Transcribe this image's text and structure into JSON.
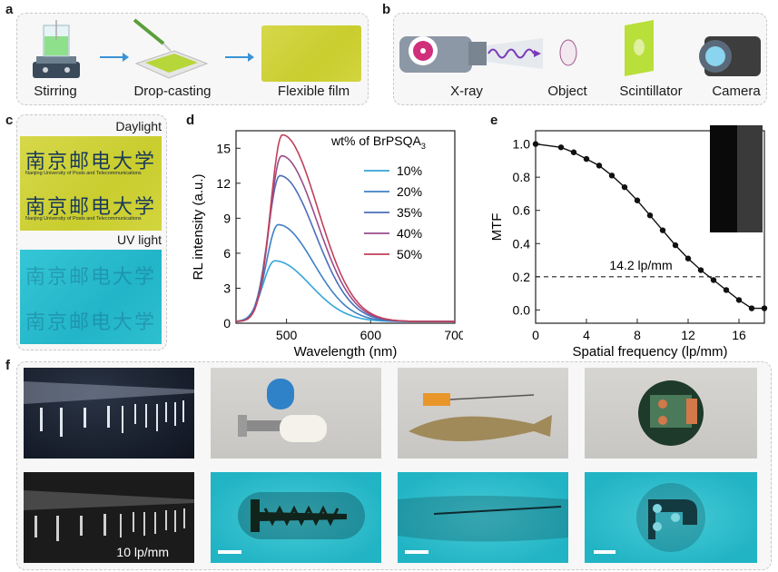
{
  "panels": {
    "a": "a",
    "b": "b",
    "c": "c",
    "d": "d",
    "e": "e",
    "f": "f"
  },
  "panel_a": {
    "steps": [
      "Stirring",
      "Drop-casting",
      "Flexible film"
    ]
  },
  "panel_b": {
    "steps": [
      "X-ray",
      "Object",
      "Scintillator",
      "Camera"
    ]
  },
  "panel_c": {
    "top_label": "Daylight",
    "bottom_label": "UV light",
    "film_chars": "南京邮电大学",
    "film_text": "Nanjing University of Posts and Telecommunications"
  },
  "panel_f": {
    "resolution_label": "10 lp/mm"
  },
  "chart_data": [
    {
      "type": "line",
      "panel": "d",
      "xlabel": "Wavelength (nm)",
      "ylabel": "RL intensity (a.u.)",
      "xlim": [
        440,
        700
      ],
      "ylim": [
        0,
        16.5
      ],
      "xticks": [
        500,
        600,
        700
      ],
      "yticks": [
        0,
        3,
        6,
        9,
        12,
        15
      ],
      "legend_title": "wt% of BrPSQA",
      "legend_title_sub": "3",
      "legend_position": "right",
      "series": [
        {
          "name": "10%",
          "peak_x": 486,
          "peak_y": 5.2,
          "color": "#35a5d8"
        },
        {
          "name": "20%",
          "peak_x": 490,
          "peak_y": 8.3,
          "color": "#3d80c4"
        },
        {
          "name": "35%",
          "peak_x": 492,
          "peak_y": 12.5,
          "color": "#4a6fb8"
        },
        {
          "name": "40%",
          "peak_x": 494,
          "peak_y": 14.2,
          "color": "#9a4d8c"
        },
        {
          "name": "50%",
          "peak_x": 495,
          "peak_y": 16.0,
          "color": "#c0405a"
        }
      ]
    },
    {
      "type": "line",
      "panel": "e",
      "xlabel": "Spatial frequency (lp/mm)",
      "ylabel": "MTF",
      "xlim": [
        0,
        18
      ],
      "ylim": [
        -0.08,
        1.08
      ],
      "xticks": [
        0,
        4,
        8,
        12,
        16
      ],
      "yticks": [
        0.0,
        0.2,
        0.4,
        0.6,
        0.8,
        1.0
      ],
      "x": [
        0,
        2,
        3,
        4,
        5,
        6,
        7,
        8,
        9,
        10,
        11,
        12,
        13,
        14,
        15,
        16,
        17,
        18
      ],
      "y": [
        1.0,
        0.98,
        0.95,
        0.91,
        0.87,
        0.81,
        0.74,
        0.66,
        0.57,
        0.48,
        0.39,
        0.31,
        0.24,
        0.18,
        0.12,
        0.06,
        0.01,
        0.01
      ],
      "reference_line": 0.2,
      "annotation": "14.2 lp/mm"
    }
  ]
}
